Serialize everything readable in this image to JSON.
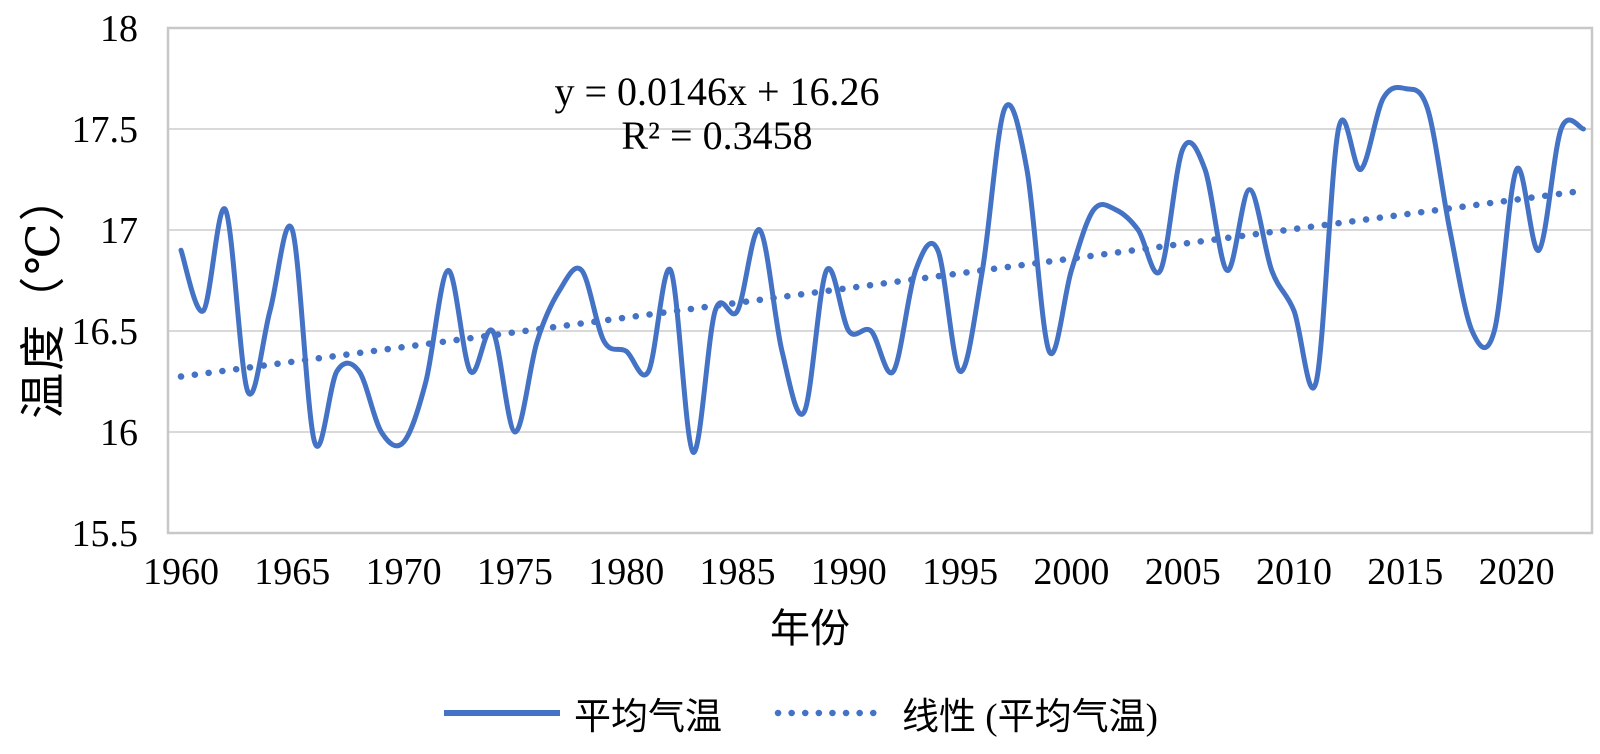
{
  "chart_data": {
    "type": "line",
    "title": "",
    "xlabel": "年份",
    "ylabel": "温度（℃）",
    "ylim": [
      15.5,
      18
    ],
    "ytick_step": 0.5,
    "y_ticks": [
      18,
      17.5,
      17,
      16.5,
      16,
      15.5
    ],
    "x_ticks": [
      1960,
      1965,
      1970,
      1975,
      1980,
      1985,
      1990,
      1995,
      2000,
      2005,
      2010,
      2015,
      2020
    ],
    "grid": "horizontal",
    "legend_position": "bottom",
    "line_color": "#4472C4",
    "grid_color": "#D9D9D9",
    "border_color": "#C8C8C8",
    "years": [
      1960,
      1961,
      1962,
      1963,
      1964,
      1965,
      1966,
      1967,
      1968,
      1969,
      1970,
      1971,
      1972,
      1973,
      1974,
      1975,
      1976,
      1977,
      1978,
      1979,
      1980,
      1981,
      1982,
      1983,
      1984,
      1985,
      1986,
      1987,
      1988,
      1989,
      1990,
      1991,
      1992,
      1993,
      1994,
      1995,
      1996,
      1997,
      1998,
      1999,
      2000,
      2001,
      2002,
      2003,
      2004,
      2005,
      2006,
      2007,
      2008,
      2009,
      2010,
      2011,
      2012,
      2013,
      2014,
      2015,
      2016,
      2017,
      2018,
      2019,
      2020,
      2021,
      2022,
      2023
    ],
    "series": [
      {
        "name": "平均气温",
        "style": "solid-smooth",
        "color": "#4472C4",
        "values": [
          16.9,
          16.6,
          17.1,
          16.2,
          16.6,
          17.0,
          15.95,
          16.3,
          16.3,
          16.0,
          15.95,
          16.25,
          16.8,
          16.3,
          16.5,
          16.0,
          16.45,
          16.7,
          16.8,
          16.45,
          16.4,
          16.3,
          16.8,
          15.9,
          16.6,
          16.6,
          17.0,
          16.4,
          16.1,
          16.8,
          16.5,
          16.5,
          16.3,
          16.8,
          16.9,
          16.3,
          16.8,
          17.6,
          17.3,
          16.4,
          16.8,
          17.1,
          17.1,
          17.0,
          16.8,
          17.4,
          17.3,
          16.8,
          17.2,
          16.8,
          16.6,
          16.25,
          17.5,
          17.3,
          17.65,
          17.7,
          17.6,
          17.0,
          16.5,
          16.5,
          17.3,
          16.9,
          17.5,
          17.5
        ]
      },
      {
        "name": "线性 (平均气温)",
        "style": "dotted-trend",
        "color": "#4472C4",
        "slope": 0.0146,
        "intercept": 16.26
      }
    ],
    "annotations": {
      "equation": "y = 0.0146x + 16.26",
      "r_squared": "R² = 0.3458"
    }
  }
}
